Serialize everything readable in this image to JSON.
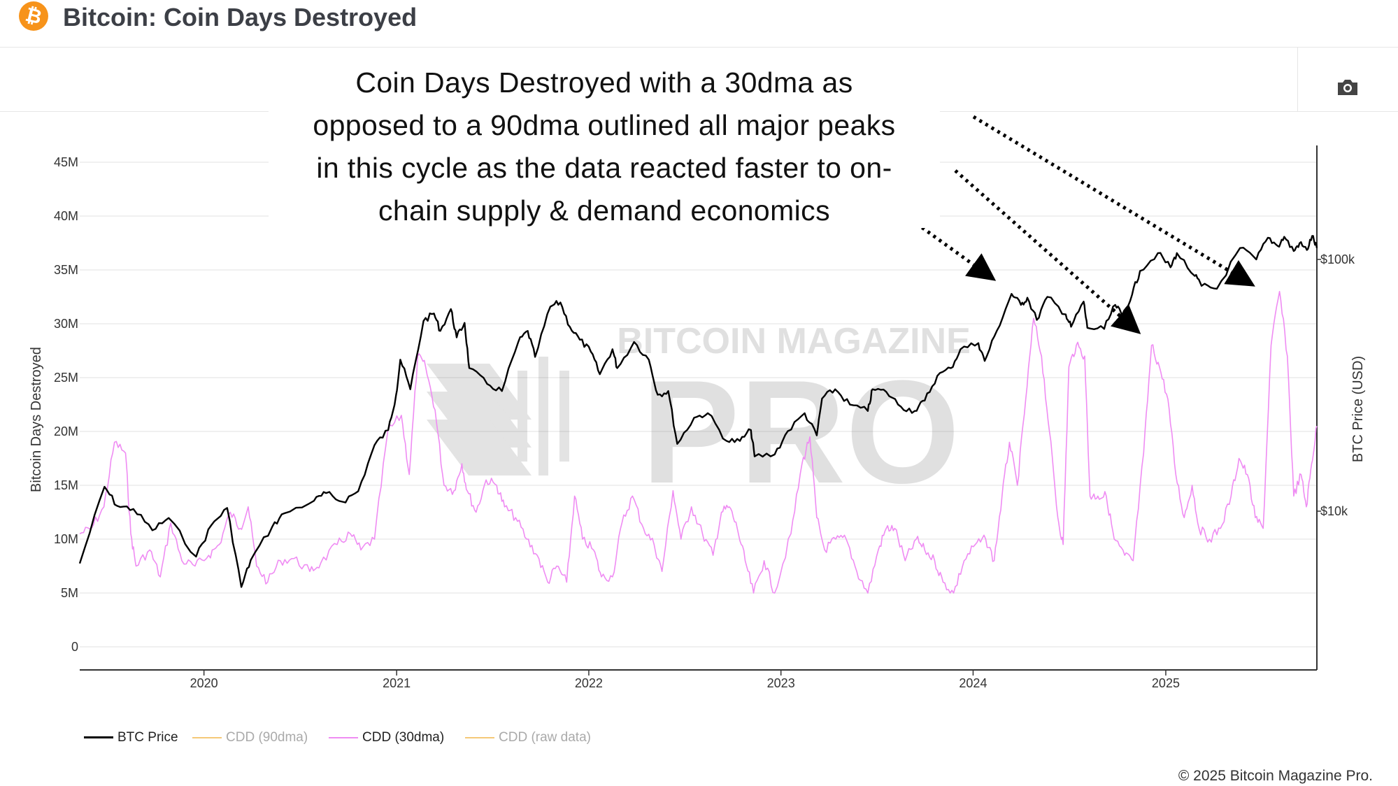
{
  "header": {
    "title": "Bitcoin: Coin Days Destroyed",
    "logo_glyph": "₿",
    "logo_color": "#f7931a"
  },
  "toolbar": {
    "camera_icon": "camera-icon"
  },
  "annotation": {
    "lines": [
      "Coin Days Destroyed with a 30dma as",
      "opposed to a 90dma outlined all major peaks",
      "in this cycle as the data reacted faster to on-",
      "chain supply & demand economics"
    ]
  },
  "watermark": {
    "line1": "BITCOIN MAGAZINE",
    "line2": "PRO"
  },
  "copyright": "© 2025 Bitcoin Magazine Pro.",
  "chart_data": {
    "type": "line",
    "title": "Bitcoin: Coin Days Destroyed",
    "xlabel": "",
    "ylabel": "Bitcoin Days Destroyed",
    "y2label": "BTC Price (USD)",
    "x_ticks": [
      "2020",
      "2021",
      "2022",
      "2023",
      "2024",
      "2025"
    ],
    "y_ticks": [
      "0",
      "5M",
      "10M",
      "15M",
      "20M",
      "25M",
      "30M",
      "35M",
      "40M",
      "45M"
    ],
    "y2_ticks": [
      "$10k",
      "$100k"
    ],
    "ylim": [
      0,
      45000000
    ],
    "y2_scale": "log",
    "xlim": [
      "2019-05-10",
      "2025-10-15"
    ],
    "grid": true,
    "legend_position": "bottom-left",
    "colors": {
      "btc": "#000000",
      "cdd90": "#f5c978",
      "cdd30": "#ef8cf3",
      "raw": "#f5c978"
    },
    "series": [
      {
        "name": "BTC Price",
        "axis": "right",
        "visible": true,
        "points": [
          [
            "2019-05-10",
            6200
          ],
          [
            "2019-06-26",
            12500
          ],
          [
            "2019-07-20",
            10500
          ],
          [
            "2019-08-20",
            10200
          ],
          [
            "2019-09-25",
            8400
          ],
          [
            "2019-10-26",
            9400
          ],
          [
            "2019-12-17",
            6600
          ],
          [
            "2020-01-15",
            8800
          ],
          [
            "2020-02-14",
            10300
          ],
          [
            "2020-03-12",
            5000
          ],
          [
            "2020-03-30",
            6400
          ],
          [
            "2020-05-10",
            8700
          ],
          [
            "2020-06-01",
            9800
          ],
          [
            "2020-07-28",
            11000
          ],
          [
            "2020-08-20",
            11800
          ],
          [
            "2020-09-20",
            10900
          ],
          [
            "2020-10-20",
            12000
          ],
          [
            "2020-11-20",
            18300
          ],
          [
            "2020-12-16",
            21000
          ],
          [
            "2020-12-31",
            29000
          ],
          [
            "2021-01-08",
            40000
          ],
          [
            "2021-01-27",
            30500
          ],
          [
            "2021-02-21",
            57000
          ],
          [
            "2021-03-13",
            61000
          ],
          [
            "2021-03-25",
            52000
          ],
          [
            "2021-04-14",
            63500
          ],
          [
            "2021-04-25",
            49000
          ],
          [
            "2021-05-10",
            56000
          ],
          [
            "2021-05-19",
            37000
          ],
          [
            "2021-06-22",
            32000
          ],
          [
            "2021-07-20",
            30000
          ],
          [
            "2021-08-20",
            47000
          ],
          [
            "2021-09-07",
            52000
          ],
          [
            "2021-09-21",
            41000
          ],
          [
            "2021-10-20",
            65000
          ],
          [
            "2021-11-08",
            67500
          ],
          [
            "2021-11-26",
            54000
          ],
          [
            "2021-12-15",
            48000
          ],
          [
            "2022-01-05",
            43000
          ],
          [
            "2022-01-22",
            35000
          ],
          [
            "2022-02-15",
            44000
          ],
          [
            "2022-02-24",
            37000
          ],
          [
            "2022-03-28",
            47000
          ],
          [
            "2022-04-25",
            40000
          ],
          [
            "2022-05-12",
            29000
          ],
          [
            "2022-06-01",
            30000
          ],
          [
            "2022-06-18",
            18500
          ],
          [
            "2022-07-20",
            23500
          ],
          [
            "2022-08-15",
            24500
          ],
          [
            "2022-09-20",
            19000
          ],
          [
            "2022-10-15",
            19000
          ],
          [
            "2022-11-05",
            21000
          ],
          [
            "2022-11-12",
            16500
          ],
          [
            "2022-12-20",
            16800
          ],
          [
            "2023-01-14",
            20800
          ],
          [
            "2023-02-15",
            24500
          ],
          [
            "2023-03-10",
            20000
          ],
          [
            "2023-03-20",
            28000
          ],
          [
            "2023-04-14",
            30500
          ],
          [
            "2023-05-12",
            26500
          ],
          [
            "2023-06-15",
            25000
          ],
          [
            "2023-06-24",
            30500
          ],
          [
            "2023-07-20",
            29800
          ],
          [
            "2023-08-17",
            26000
          ],
          [
            "2023-09-12",
            25000
          ],
          [
            "2023-10-01",
            27500
          ],
          [
            "2023-10-25",
            34500
          ],
          [
            "2023-11-20",
            37000
          ],
          [
            "2023-12-08",
            44000
          ],
          [
            "2024-01-11",
            46500
          ],
          [
            "2024-01-23",
            39500
          ],
          [
            "2024-02-15",
            52000
          ],
          [
            "2024-03-14",
            73000
          ],
          [
            "2024-04-01",
            66000
          ],
          [
            "2024-04-13",
            70500
          ],
          [
            "2024-05-01",
            57500
          ],
          [
            "2024-05-21",
            71000
          ],
          [
            "2024-06-25",
            60500
          ],
          [
            "2024-07-05",
            54000
          ],
          [
            "2024-07-29",
            68000
          ],
          [
            "2024-08-05",
            53500
          ],
          [
            "2024-09-06",
            53000
          ],
          [
            "2024-09-27",
            66000
          ],
          [
            "2024-10-10",
            60000
          ],
          [
            "2024-10-29",
            72500
          ],
          [
            "2024-11-13",
            90000
          ],
          [
            "2024-12-17",
            106000
          ],
          [
            "2025-01-10",
            93000
          ],
          [
            "2025-01-22",
            106000
          ],
          [
            "2025-02-25",
            86000
          ],
          [
            "2025-03-10",
            78500
          ],
          [
            "2025-04-08",
            76500
          ],
          [
            "2025-05-22",
            111000
          ],
          [
            "2025-06-22",
            100000
          ],
          [
            "2025-07-14",
            122000
          ],
          [
            "2025-08-02",
            113000
          ],
          [
            "2025-08-14",
            123000
          ],
          [
            "2025-09-01",
            108000
          ],
          [
            "2025-09-12",
            116000
          ],
          [
            "2025-09-26",
            109000
          ],
          [
            "2025-10-06",
            124000
          ],
          [
            "2025-10-15",
            111000
          ]
        ]
      },
      {
        "name": "CDD (90dma)",
        "axis": "left",
        "visible": false,
        "points": []
      },
      {
        "name": "CDD (30dma)",
        "axis": "left",
        "visible": true,
        "points": [
          [
            "2019-05-10",
            10500000
          ],
          [
            "2019-06-01",
            11000000
          ],
          [
            "2019-06-25",
            13000000
          ],
          [
            "2019-07-15",
            19000000
          ],
          [
            "2019-08-05",
            18000000
          ],
          [
            "2019-08-15",
            10500000
          ],
          [
            "2019-08-25",
            7500000
          ],
          [
            "2019-09-20",
            9000000
          ],
          [
            "2019-10-10",
            6500000
          ],
          [
            "2019-10-30",
            11500000
          ],
          [
            "2019-11-20",
            8000000
          ],
          [
            "2019-12-15",
            7500000
          ],
          [
            "2020-01-10",
            8500000
          ],
          [
            "2020-01-30",
            9500000
          ],
          [
            "2020-02-20",
            12500000
          ],
          [
            "2020-03-10",
            11000000
          ],
          [
            "2020-03-25",
            13000000
          ],
          [
            "2020-04-10",
            7500000
          ],
          [
            "2020-05-01",
            6000000
          ],
          [
            "2020-05-25",
            8000000
          ],
          [
            "2020-06-20",
            8200000
          ],
          [
            "2020-07-20",
            7000000
          ],
          [
            "2020-08-10",
            7800000
          ],
          [
            "2020-09-10",
            9500000
          ],
          [
            "2020-10-05",
            10500000
          ],
          [
            "2020-10-25",
            9000000
          ],
          [
            "2020-11-20",
            10000000
          ],
          [
            "2020-12-15",
            20000000
          ],
          [
            "2021-01-10",
            21500000
          ],
          [
            "2021-01-25",
            16000000
          ],
          [
            "2021-02-10",
            27000000
          ],
          [
            "2021-02-25",
            26000000
          ],
          [
            "2021-03-15",
            22000000
          ],
          [
            "2021-04-01",
            15000000
          ],
          [
            "2021-04-20",
            14500000
          ],
          [
            "2021-05-05",
            17000000
          ],
          [
            "2021-05-15",
            14500000
          ],
          [
            "2021-06-01",
            12500000
          ],
          [
            "2021-06-20",
            15500000
          ],
          [
            "2021-07-10",
            15000000
          ],
          [
            "2021-07-25",
            13000000
          ],
          [
            "2021-08-15",
            12000000
          ],
          [
            "2021-09-05",
            10000000
          ],
          [
            "2021-09-25",
            8500000
          ],
          [
            "2021-10-15",
            6000000
          ],
          [
            "2021-11-01",
            7500000
          ],
          [
            "2021-11-20",
            6000000
          ],
          [
            "2021-12-05",
            14000000
          ],
          [
            "2021-12-20",
            10000000
          ],
          [
            "2022-01-10",
            9000000
          ],
          [
            "2022-01-25",
            6500000
          ],
          [
            "2022-02-15",
            6500000
          ],
          [
            "2022-03-05",
            11500000
          ],
          [
            "2022-03-25",
            14000000
          ],
          [
            "2022-04-15",
            11000000
          ],
          [
            "2022-05-05",
            9500000
          ],
          [
            "2022-05-20",
            7000000
          ],
          [
            "2022-06-10",
            14500000
          ],
          [
            "2022-06-25",
            10000000
          ],
          [
            "2022-07-15",
            13000000
          ],
          [
            "2022-08-05",
            10500000
          ],
          [
            "2022-08-25",
            8500000
          ],
          [
            "2022-09-10",
            12500000
          ],
          [
            "2022-09-25",
            13000000
          ],
          [
            "2022-10-10",
            11000000
          ],
          [
            "2022-10-25",
            8000000
          ],
          [
            "2022-11-10",
            5000000
          ],
          [
            "2022-11-30",
            8000000
          ],
          [
            "2022-12-20",
            5000000
          ],
          [
            "2023-01-20",
            10500000
          ],
          [
            "2023-02-10",
            17000000
          ],
          [
            "2023-02-25",
            19500000
          ],
          [
            "2023-03-10",
            12000000
          ],
          [
            "2023-03-25",
            9000000
          ],
          [
            "2023-04-15",
            10000000
          ],
          [
            "2023-05-05",
            10000000
          ],
          [
            "2023-05-25",
            7000000
          ],
          [
            "2023-06-15",
            5000000
          ],
          [
            "2023-07-05",
            9000000
          ],
          [
            "2023-07-20",
            11000000
          ],
          [
            "2023-08-05",
            11000000
          ],
          [
            "2023-08-25",
            8000000
          ],
          [
            "2023-09-15",
            10000000
          ],
          [
            "2023-10-01",
            9000000
          ],
          [
            "2023-10-20",
            8000000
          ],
          [
            "2023-11-05",
            6000000
          ],
          [
            "2023-11-25",
            5000000
          ],
          [
            "2023-12-15",
            8000000
          ],
          [
            "2024-01-05",
            9500000
          ],
          [
            "2024-01-25",
            10000000
          ],
          [
            "2024-02-10",
            8000000
          ],
          [
            "2024-02-25",
            14000000
          ],
          [
            "2024-03-10",
            19000000
          ],
          [
            "2024-03-25",
            15000000
          ],
          [
            "2024-04-10",
            23000000
          ],
          [
            "2024-04-25",
            30500000
          ],
          [
            "2024-05-10",
            27000000
          ],
          [
            "2024-05-25",
            20000000
          ],
          [
            "2024-06-10",
            12000000
          ],
          [
            "2024-06-20",
            9500000
          ],
          [
            "2024-07-01",
            26000000
          ],
          [
            "2024-07-15",
            28000000
          ],
          [
            "2024-07-31",
            27000000
          ],
          [
            "2024-08-10",
            14000000
          ],
          [
            "2024-08-25",
            14000000
          ],
          [
            "2024-09-10",
            14000000
          ],
          [
            "2024-09-25",
            10000000
          ],
          [
            "2024-10-15",
            8500000
          ],
          [
            "2024-10-31",
            8000000
          ],
          [
            "2024-11-20",
            18000000
          ],
          [
            "2024-12-05",
            28000000
          ],
          [
            "2024-12-20",
            26000000
          ],
          [
            "2025-01-05",
            23000000
          ],
          [
            "2025-01-20",
            16000000
          ],
          [
            "2025-02-05",
            12000000
          ],
          [
            "2025-02-20",
            15000000
          ],
          [
            "2025-03-05",
            11000000
          ],
          [
            "2025-03-25",
            10000000
          ],
          [
            "2025-04-15",
            11000000
          ],
          [
            "2025-05-05",
            14000000
          ],
          [
            "2025-05-20",
            17500000
          ],
          [
            "2025-06-05",
            16000000
          ],
          [
            "2025-06-20",
            12000000
          ],
          [
            "2025-07-05",
            11000000
          ],
          [
            "2025-07-20",
            28000000
          ],
          [
            "2025-08-05",
            33000000
          ],
          [
            "2025-08-20",
            27000000
          ],
          [
            "2025-09-01",
            14000000
          ],
          [
            "2025-09-15",
            16000000
          ],
          [
            "2025-09-25",
            13000000
          ],
          [
            "2025-10-05",
            17000000
          ],
          [
            "2025-10-15",
            20500000
          ]
        ]
      },
      {
        "name": "CDD (raw data)",
        "axis": "left",
        "visible": false,
        "points": []
      }
    ]
  },
  "legend": {
    "items": [
      {
        "label": "BTC Price",
        "color": "#000000",
        "active": true
      },
      {
        "label": "CDD (90dma)",
        "color": "#f5c978",
        "active": false
      },
      {
        "label": "CDD (30dma)",
        "color": "#ef8cf3",
        "active": true
      },
      {
        "label": "CDD (raw data)",
        "color": "#f5c978",
        "active": false
      }
    ]
  }
}
